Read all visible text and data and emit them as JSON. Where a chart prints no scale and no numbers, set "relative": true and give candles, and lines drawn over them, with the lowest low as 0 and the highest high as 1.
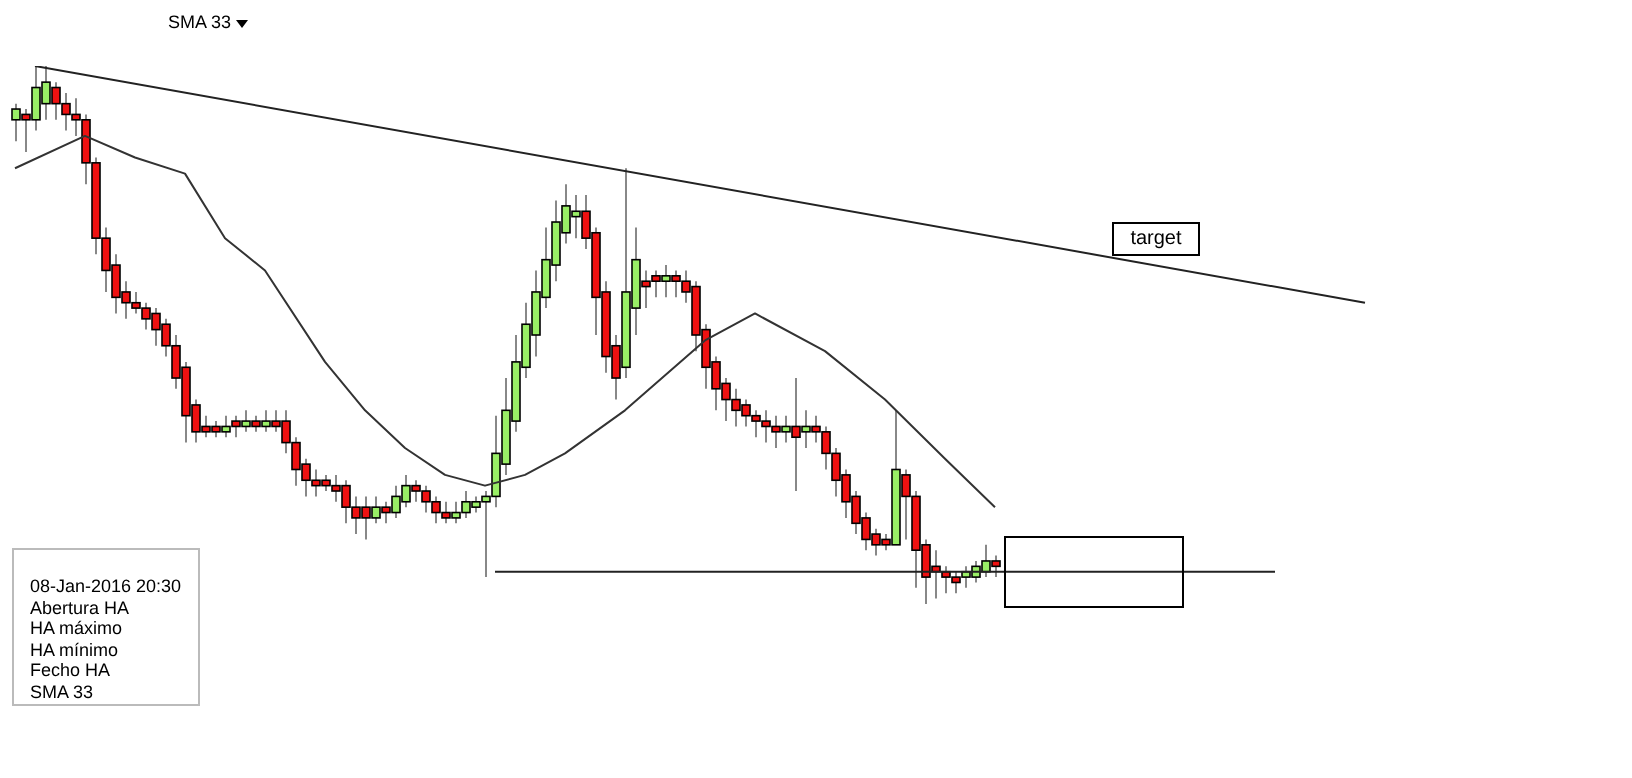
{
  "chart_data": {
    "type": "candlestick",
    "relative": true,
    "grid": false,
    "legend": false,
    "tick_labels": false,
    "marker": "none",
    "line_style": "solid",
    "categories": [
      null,
      null,
      null,
      null,
      null,
      null,
      null,
      null,
      null,
      null,
      null,
      null,
      null,
      null,
      null,
      null,
      null,
      null,
      null,
      null,
      null,
      null,
      null,
      null,
      null,
      null,
      null,
      null,
      null,
      null,
      null,
      null,
      null,
      null,
      null,
      null,
      null,
      null,
      null,
      null,
      null,
      null,
      null,
      null,
      null,
      null,
      null,
      null,
      null,
      null,
      null,
      null,
      null,
      null,
      null,
      null,
      null,
      null,
      null,
      null,
      null,
      null,
      null,
      null,
      null,
      null,
      null,
      null,
      null,
      null,
      null,
      null,
      null,
      null,
      null,
      null,
      null,
      null,
      null,
      null,
      null,
      null,
      null,
      null,
      null,
      null,
      null,
      null,
      null,
      null,
      null,
      null,
      null,
      null,
      null,
      null,
      null,
      null,
      null,
      null,
      null,
      null,
      null,
      null,
      null,
      null,
      null,
      null,
      null,
      null,
      null,
      null,
      null,
      null,
      null,
      null,
      null,
      null,
      null,
      null,
      null,
      null,
      null,
      null,
      null,
      null,
      null,
      null,
      null,
      null,
      null,
      null,
      null,
      null,
      null,
      null
    ],
    "ohlc": [
      [
        0.9,
        0.93,
        0.86,
        0.92
      ],
      [
        0.91,
        0.92,
        0.84,
        0.9
      ],
      [
        0.9,
        1.0,
        0.88,
        0.96
      ],
      [
        0.93,
        1.0,
        0.9,
        0.97
      ],
      [
        0.96,
        0.97,
        0.9,
        0.93
      ],
      [
        0.93,
        0.95,
        0.88,
        0.91
      ],
      [
        0.91,
        0.94,
        0.87,
        0.9
      ],
      [
        0.9,
        0.91,
        0.78,
        0.82
      ],
      [
        0.82,
        0.83,
        0.65,
        0.68
      ],
      [
        0.68,
        0.7,
        0.58,
        0.62
      ],
      [
        0.63,
        0.65,
        0.54,
        0.57
      ],
      [
        0.58,
        0.6,
        0.53,
        0.56
      ],
      [
        0.56,
        0.58,
        0.54,
        0.55
      ],
      [
        0.55,
        0.56,
        0.51,
        0.53
      ],
      [
        0.54,
        0.55,
        0.48,
        0.51
      ],
      [
        0.52,
        0.53,
        0.46,
        0.48
      ],
      [
        0.48,
        0.5,
        0.4,
        0.42
      ],
      [
        0.44,
        0.45,
        0.3,
        0.35
      ],
      [
        0.37,
        0.38,
        0.3,
        0.32
      ],
      [
        0.33,
        0.35,
        0.31,
        0.32
      ],
      [
        0.33,
        0.34,
        0.31,
        0.32
      ],
      [
        0.32,
        0.35,
        0.31,
        0.33
      ],
      [
        0.34,
        0.35,
        0.31,
        0.33
      ],
      [
        0.33,
        0.36,
        0.32,
        0.34
      ],
      [
        0.34,
        0.35,
        0.32,
        0.33
      ],
      [
        0.33,
        0.36,
        0.32,
        0.34
      ],
      [
        0.34,
        0.36,
        0.32,
        0.33
      ],
      [
        0.34,
        0.36,
        0.28,
        0.3
      ],
      [
        0.3,
        0.31,
        0.22,
        0.25
      ],
      [
        0.26,
        0.27,
        0.2,
        0.23
      ],
      [
        0.23,
        0.25,
        0.2,
        0.22
      ],
      [
        0.23,
        0.24,
        0.21,
        0.22
      ],
      [
        0.22,
        0.24,
        0.19,
        0.21
      ],
      [
        0.22,
        0.23,
        0.15,
        0.18
      ],
      [
        0.18,
        0.2,
        0.13,
        0.16
      ],
      [
        0.18,
        0.2,
        0.12,
        0.16
      ],
      [
        0.16,
        0.2,
        0.15,
        0.18
      ],
      [
        0.18,
        0.19,
        0.15,
        0.17
      ],
      [
        0.17,
        0.22,
        0.16,
        0.2
      ],
      [
        0.19,
        0.24,
        0.18,
        0.22
      ],
      [
        0.22,
        0.23,
        0.19,
        0.21
      ],
      [
        0.21,
        0.22,
        0.17,
        0.19
      ],
      [
        0.19,
        0.2,
        0.15,
        0.17
      ],
      [
        0.17,
        0.19,
        0.15,
        0.16
      ],
      [
        0.16,
        0.19,
        0.15,
        0.17
      ],
      [
        0.17,
        0.21,
        0.16,
        0.19
      ],
      [
        0.18,
        0.2,
        0.17,
        0.19
      ],
      [
        0.19,
        0.21,
        0.05,
        0.2
      ],
      [
        0.2,
        0.35,
        0.18,
        0.28
      ],
      [
        0.26,
        0.42,
        0.24,
        0.36
      ],
      [
        0.34,
        0.5,
        0.32,
        0.45
      ],
      [
        0.44,
        0.56,
        0.42,
        0.52
      ],
      [
        0.5,
        0.62,
        0.46,
        0.58
      ],
      [
        0.57,
        0.7,
        0.55,
        0.64
      ],
      [
        0.63,
        0.75,
        0.6,
        0.71
      ],
      [
        0.69,
        0.78,
        0.67,
        0.74
      ],
      [
        0.72,
        0.76,
        0.68,
        0.73
      ],
      [
        0.73,
        0.76,
        0.66,
        0.68
      ],
      [
        0.69,
        0.7,
        0.5,
        0.57
      ],
      [
        0.58,
        0.6,
        0.43,
        0.46
      ],
      [
        0.48,
        0.5,
        0.38,
        0.42
      ],
      [
        0.44,
        0.81,
        0.42,
        0.58
      ],
      [
        0.55,
        0.7,
        0.5,
        0.64
      ],
      [
        0.6,
        0.62,
        0.55,
        0.59
      ],
      [
        0.61,
        0.62,
        0.57,
        0.6
      ],
      [
        0.6,
        0.63,
        0.57,
        0.61
      ],
      [
        0.61,
        0.62,
        0.57,
        0.6
      ],
      [
        0.6,
        0.62,
        0.56,
        0.58
      ],
      [
        0.59,
        0.6,
        0.47,
        0.5
      ],
      [
        0.51,
        0.52,
        0.4,
        0.44
      ],
      [
        0.45,
        0.46,
        0.36,
        0.4
      ],
      [
        0.41,
        0.42,
        0.34,
        0.38
      ],
      [
        0.38,
        0.4,
        0.33,
        0.36
      ],
      [
        0.37,
        0.38,
        0.33,
        0.35
      ],
      [
        0.35,
        0.36,
        0.31,
        0.34
      ],
      [
        0.34,
        0.36,
        0.3,
        0.33
      ],
      [
        0.33,
        0.35,
        0.29,
        0.32
      ],
      [
        0.32,
        0.35,
        0.3,
        0.33
      ],
      [
        0.33,
        0.42,
        0.21,
        0.31
      ],
      [
        0.32,
        0.36,
        0.29,
        0.33
      ],
      [
        0.33,
        0.35,
        0.3,
        0.32
      ],
      [
        0.32,
        0.33,
        0.25,
        0.28
      ],
      [
        0.28,
        0.29,
        0.2,
        0.23
      ],
      [
        0.24,
        0.25,
        0.16,
        0.19
      ],
      [
        0.2,
        0.21,
        0.13,
        0.15
      ],
      [
        0.16,
        0.17,
        0.1,
        0.12
      ],
      [
        0.13,
        0.14,
        0.09,
        0.11
      ],
      [
        0.12,
        0.13,
        0.1,
        0.11
      ],
      [
        0.11,
        0.36,
        0.11,
        0.25
      ],
      [
        0.24,
        0.25,
        0.12,
        0.2
      ],
      [
        0.2,
        0.21,
        0.03,
        0.1
      ],
      [
        0.11,
        0.12,
        0,
        0.05
      ],
      [
        0.07,
        0.1,
        0.01,
        0.06
      ],
      [
        0.06,
        0.07,
        0.02,
        0.05
      ],
      [
        0.05,
        0.06,
        0.02,
        0.04
      ],
      [
        0.05,
        0.07,
        0.03,
        0.06
      ],
      [
        0.05,
        0.08,
        0.04,
        0.07
      ],
      [
        0.06,
        0.11,
        0.05,
        0.08
      ],
      [
        0.08,
        0.09,
        0.05,
        0.07
      ],
      null,
      null,
      null,
      null,
      null,
      null,
      null,
      null,
      null,
      null,
      null,
      null,
      null,
      null,
      null,
      null,
      null,
      null,
      null,
      null,
      null,
      null,
      null,
      null,
      null,
      null,
      null,
      null,
      null,
      null,
      null,
      null,
      null,
      null,
      null,
      null,
      null
    ],
    "colors": [
      "#99ee66",
      "#ee1111",
      "#99ee66",
      "#99ee66",
      "#ee1111",
      "#ee1111",
      "#ee1111",
      "#ee1111",
      "#ee1111",
      "#ee1111",
      "#ee1111",
      "#ee1111",
      "#ee1111",
      "#ee1111",
      "#ee1111",
      "#ee1111",
      "#ee1111",
      "#ee1111",
      "#ee1111",
      "#ee1111",
      "#ee1111",
      "#99ee66",
      "#ee1111",
      "#99ee66",
      "#ee1111",
      "#99ee66",
      "#ee1111",
      "#ee1111",
      "#ee1111",
      "#ee1111",
      "#ee1111",
      "#ee1111",
      "#ee1111",
      "#ee1111",
      "#ee1111",
      "#ee1111",
      "#99ee66",
      "#ee1111",
      "#99ee66",
      "#99ee66",
      "#ee1111",
      "#ee1111",
      "#ee1111",
      "#ee1111",
      "#99ee66",
      "#99ee66",
      "#99ee66",
      "#99ee66",
      "#99ee66",
      "#99ee66",
      "#99ee66",
      "#99ee66",
      "#99ee66",
      "#99ee66",
      "#99ee66",
      "#99ee66",
      "#99ee66",
      "#ee1111",
      "#ee1111",
      "#ee1111",
      "#ee1111",
      "#99ee66",
      "#99ee66",
      "#ee1111",
      "#ee1111",
      "#99ee66",
      "#ee1111",
      "#ee1111",
      "#ee1111",
      "#ee1111",
      "#ee1111",
      "#ee1111",
      "#ee1111",
      "#ee1111",
      "#ee1111",
      "#ee1111",
      "#ee1111",
      "#99ee66",
      "#ee1111",
      "#99ee66",
      "#ee1111",
      "#ee1111",
      "#ee1111",
      "#ee1111",
      "#ee1111",
      "#ee1111",
      "#ee1111",
      "#ee1111",
      "#99ee66",
      "#ee1111",
      "#ee1111",
      "#ee1111",
      "#ee1111",
      "#ee1111",
      "#ee1111",
      "#99ee66",
      "#99ee66",
      "#99ee66",
      "#ee1111",
      null,
      null,
      null,
      null,
      null,
      null,
      null,
      null,
      null,
      null,
      null,
      null,
      null,
      null,
      null,
      null,
      null,
      null,
      null,
      null,
      null,
      null,
      null,
      null,
      null,
      null,
      null,
      null,
      null,
      null,
      null,
      null,
      null,
      null,
      null,
      null,
      null
    ],
    "series": [
      {
        "type": "line",
        "color": "#333333",
        "values": [
          0.81,
          null,
          null,
          null,
          null,
          null,
          null,
          0.87,
          null,
          null,
          null,
          null,
          0.83,
          null,
          null,
          null,
          null,
          0.8,
          null,
          null,
          null,
          0.68,
          null,
          null,
          null,
          0.62,
          null,
          null,
          null,
          null,
          null,
          0.45,
          null,
          null,
          null,
          0.36,
          null,
          null,
          null,
          0.29,
          null,
          null,
          null,
          0.24,
          null,
          null,
          null,
          0.22,
          null,
          null,
          null,
          0.24,
          null,
          null,
          null,
          0.28,
          null,
          null,
          null,
          null,
          null,
          0.36,
          null,
          null,
          null,
          null,
          null,
          null,
          null,
          0.49,
          null,
          null,
          null,
          null,
          0.54,
          null,
          null,
          null,
          null,
          null,
          null,
          0.47,
          null,
          null,
          null,
          null,
          null,
          0.38,
          null,
          null,
          null,
          null,
          null,
          0.27,
          null,
          null,
          null,
          null,
          0.18,
          null,
          null,
          null,
          null,
          null,
          null,
          null,
          null,
          null,
          null,
          null,
          null,
          null,
          null,
          null,
          null,
          null,
          null,
          null,
          null,
          null,
          null,
          null,
          null,
          null,
          null,
          null,
          null,
          null,
          null,
          null,
          null,
          null,
          null,
          null,
          null,
          null
        ]
      },
      {
        "type": "line",
        "color": "#222222",
        "values": [
          null,
          null,
          1.0,
          null,
          null,
          null,
          null,
          null,
          null,
          null,
          null,
          null,
          null,
          null,
          null,
          null,
          null,
          null,
          null,
          null,
          null,
          null,
          null,
          null,
          null,
          null,
          null,
          null,
          null,
          null,
          null,
          null,
          null,
          null,
          null,
          null,
          null,
          null,
          null,
          null,
          null,
          null,
          null,
          null,
          null,
          null,
          null,
          null,
          null,
          null,
          null,
          null,
          null,
          null,
          null,
          null,
          null,
          null,
          null,
          null,
          null,
          null,
          null,
          null,
          null,
          null,
          null,
          null,
          null,
          null,
          null,
          null,
          null,
          null,
          null,
          null,
          null,
          null,
          null,
          null,
          null,
          null,
          null,
          null,
          null,
          null,
          null,
          null,
          null,
          null,
          null,
          null,
          null,
          null,
          null,
          null,
          null,
          null,
          null,
          null,
          null,
          null,
          null,
          null,
          null,
          null,
          null,
          null,
          null,
          null,
          null,
          null,
          null,
          null,
          null,
          null,
          null,
          null,
          null,
          null,
          null,
          null,
          null,
          null,
          null,
          null,
          null,
          null,
          null,
          null,
          null,
          null,
          null,
          null,
          null,
          0.56
        ]
      },
      {
        "type": "line",
        "color": "#222222",
        "values": [
          null,
          null,
          null,
          null,
          null,
          null,
          null,
          null,
          null,
          null,
          null,
          null,
          null,
          null,
          null,
          null,
          null,
          null,
          null,
          null,
          null,
          null,
          null,
          null,
          null,
          null,
          null,
          null,
          null,
          null,
          null,
          null,
          null,
          null,
          null,
          null,
          null,
          null,
          null,
          null,
          null,
          null,
          null,
          null,
          null,
          null,
          null,
          null,
          0.06,
          null,
          null,
          null,
          null,
          null,
          null,
          null,
          null,
          null,
          null,
          null,
          null,
          null,
          null,
          null,
          null,
          null,
          null,
          null,
          null,
          null,
          null,
          null,
          null,
          null,
          null,
          null,
          null,
          null,
          null,
          null,
          null,
          null,
          null,
          null,
          null,
          null,
          null,
          null,
          null,
          null,
          null,
          null,
          null,
          null,
          null,
          null,
          null,
          null,
          null,
          null,
          null,
          null,
          null,
          null,
          null,
          null,
          null,
          null,
          null,
          null,
          null,
          null,
          null,
          null,
          null,
          null,
          null,
          null,
          null,
          null,
          null,
          null,
          null,
          null,
          null,
          null,
          0.06,
          null,
          null,
          null,
          null,
          null,
          null,
          null,
          null,
          null
        ]
      }
    ],
    "annotations": [
      "SMA 33",
      "target",
      "08-Jan-2016 20:30",
      "Abertura HA",
      "HA máximo",
      "HA mínimo",
      "Fecho HA",
      "SMA 33"
    ]
  }
}
